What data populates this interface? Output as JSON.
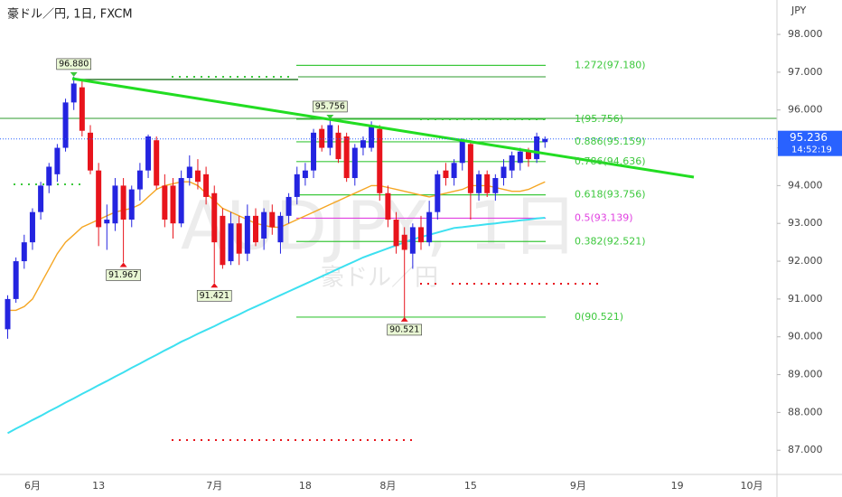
{
  "chart_data": {
    "type": "candlestick",
    "title": "豪ドル／円, 1日, FXCM",
    "watermark": "AUDJPY, 1日",
    "watermark_sub": "豪ドル／円",
    "axis_unit": "JPY",
    "categories": [
      null,
      null,
      null,
      "6月",
      null,
      null,
      null,
      null,
      null,
      null,
      null,
      "13",
      null,
      null,
      null,
      null,
      null,
      null,
      null,
      null,
      null,
      null,
      null,
      null,
      null,
      "7月",
      null,
      null,
      null,
      null,
      null,
      null,
      null,
      null,
      null,
      null,
      "18",
      null,
      null,
      null,
      null,
      null,
      null,
      null,
      null,
      null,
      "8月",
      null,
      null,
      null,
      null,
      null,
      null,
      null,
      null,
      null,
      "15",
      null,
      null,
      null,
      null,
      null,
      null,
      null,
      null,
      null,
      null,
      null,
      null,
      "9月",
      null,
      null,
      null,
      null,
      null,
      null,
      null,
      null,
      null,
      null,
      null,
      "19",
      null,
      null,
      null,
      null,
      null,
      null,
      null,
      null,
      "10月",
      null
    ],
    "open": [
      90.2,
      91.0,
      92.0,
      92.5,
      93.3,
      94.0,
      94.3,
      95.0,
      96.2,
      96.6,
      95.4,
      94.4,
      93.0,
      93.0,
      94.0,
      93.1,
      93.9,
      94.4,
      95.2,
      94.0,
      94.0,
      93.0,
      94.2,
      94.4,
      94.3,
      93.8,
      93.2,
      92.0,
      93.0,
      92.2,
      93.2,
      92.6,
      93.3,
      92.5,
      93.2,
      93.7,
      94.2,
      94.4,
      95.5,
      95.0,
      95.4,
      95.3,
      94.2,
      95.0,
      95.0,
      95.5,
      93.8,
      93.1,
      92.7,
      92.2,
      92.9,
      92.5,
      93.3,
      94.4,
      94.2,
      94.6,
      95.1,
      93.8,
      94.3,
      93.8,
      94.2,
      94.4,
      94.6,
      94.9,
      94.7,
      95.15,
      null,
      null,
      null,
      null,
      null,
      null,
      null,
      null,
      null,
      null,
      null,
      null,
      null,
      null,
      null,
      null,
      null,
      null,
      null,
      null,
      null,
      null,
      null,
      null,
      null,
      null
    ],
    "high": [
      91.1,
      92.1,
      92.7,
      93.4,
      94.1,
      94.6,
      95.1,
      96.3,
      96.88,
      96.8,
      95.6,
      94.6,
      93.5,
      94.2,
      94.2,
      94.0,
      94.6,
      95.35,
      95.3,
      94.3,
      94.2,
      94.4,
      94.8,
      94.7,
      94.5,
      94.0,
      93.4,
      93.3,
      93.2,
      93.5,
      93.4,
      93.4,
      93.5,
      93.3,
      93.8,
      94.5,
      94.6,
      95.5,
      95.6,
      95.756,
      95.6,
      95.4,
      95.1,
      95.3,
      95.7,
      95.6,
      94.0,
      93.3,
      92.9,
      93.0,
      93.2,
      93.6,
      94.4,
      94.6,
      94.7,
      95.25,
      95.2,
      94.4,
      94.4,
      94.3,
      94.7,
      94.9,
      95.0,
      95.0,
      95.4,
      95.3,
      null,
      null,
      null,
      null,
      null,
      null,
      null,
      null,
      null,
      null,
      null,
      null,
      null,
      null,
      null,
      null,
      null,
      null,
      null,
      null,
      null,
      null,
      null,
      null,
      null,
      null
    ],
    "low": [
      89.95,
      90.9,
      91.8,
      92.3,
      93.1,
      93.8,
      94.1,
      94.9,
      96.0,
      95.3,
      94.3,
      92.4,
      92.3,
      92.8,
      91.967,
      92.9,
      93.6,
      94.2,
      93.9,
      92.9,
      92.6,
      92.9,
      94.0,
      93.9,
      93.5,
      91.421,
      91.8,
      91.9,
      91.9,
      92.0,
      92.4,
      92.3,
      92.7,
      92.2,
      93.0,
      93.5,
      94.0,
      94.2,
      94.9,
      94.8,
      94.6,
      94.1,
      94.0,
      94.8,
      94.9,
      93.6,
      92.9,
      92.2,
      90.521,
      91.8,
      92.3,
      92.4,
      93.1,
      94.0,
      94.0,
      94.4,
      93.1,
      93.6,
      93.7,
      93.6,
      94.0,
      94.2,
      94.4,
      94.5,
      94.6,
      95.0,
      null,
      null,
      null,
      null,
      null,
      null,
      null,
      null,
      null,
      null,
      null,
      null,
      null,
      null,
      null,
      null,
      null,
      null,
      null,
      null,
      null,
      null,
      null,
      null,
      null,
      null
    ],
    "close": [
      91.0,
      92.0,
      92.5,
      93.3,
      94.0,
      94.5,
      95.0,
      96.2,
      96.7,
      95.45,
      94.4,
      92.9,
      93.1,
      94.0,
      93.1,
      93.9,
      94.4,
      95.3,
      94.0,
      93.1,
      93.0,
      94.2,
      94.5,
      94.1,
      93.7,
      92.5,
      91.9,
      93.0,
      92.2,
      93.2,
      92.5,
      93.3,
      92.9,
      93.2,
      93.7,
      94.3,
      94.4,
      95.4,
      95.0,
      95.6,
      94.7,
      94.2,
      95.0,
      95.2,
      95.6,
      93.8,
      93.1,
      92.4,
      92.3,
      92.9,
      92.5,
      93.3,
      94.3,
      94.2,
      94.6,
      95.2,
      93.8,
      94.3,
      93.8,
      94.2,
      94.5,
      94.8,
      94.9,
      94.7,
      95.3,
      95.236,
      null,
      null,
      null,
      null,
      null,
      null,
      null,
      null,
      null,
      null,
      null,
      null,
      null,
      null,
      null,
      null,
      null,
      null,
      null,
      null,
      null,
      null,
      null,
      null,
      null,
      null
    ],
    "up_color": "#2424e0",
    "down_color": "#e8141c",
    "series": [
      {
        "color": "#f5a623",
        "values": [
          90.7,
          90.7,
          90.8,
          91.0,
          91.4,
          91.8,
          92.2,
          92.5,
          92.7,
          92.9,
          93.0,
          93.1,
          93.2,
          93.3,
          93.35,
          93.4,
          93.5,
          93.7,
          93.9,
          94.0,
          94.05,
          94.1,
          94.1,
          94.0,
          93.8,
          93.6,
          93.4,
          93.3,
          93.2,
          93.1,
          93.0,
          92.95,
          92.9,
          92.9,
          93.0,
          93.1,
          93.2,
          93.3,
          93.4,
          93.5,
          93.6,
          93.7,
          93.8,
          93.9,
          94.0,
          94.0,
          93.95,
          93.9,
          93.85,
          93.8,
          93.75,
          93.7,
          93.75,
          93.8,
          93.85,
          93.9,
          94.0,
          94.0,
          94.0,
          93.95,
          93.9,
          93.85,
          93.85,
          93.9,
          94.0,
          94.1,
          null,
          null,
          null,
          null,
          null,
          null,
          null,
          null,
          null,
          null,
          null,
          null,
          null,
          null,
          null,
          null,
          null,
          null,
          null,
          null,
          null,
          null,
          null,
          null,
          null,
          null
        ]
      },
      {
        "color": "#3de0f0",
        "values": [
          87.45,
          87.57,
          87.68,
          87.8,
          87.91,
          88.03,
          88.14,
          88.26,
          88.37,
          88.49,
          88.6,
          88.72,
          88.83,
          88.95,
          89.06,
          89.18,
          89.29,
          89.41,
          89.52,
          89.64,
          89.75,
          89.87,
          89.97,
          90.08,
          90.18,
          90.28,
          90.39,
          90.49,
          90.59,
          90.7,
          90.8,
          90.9,
          91.0,
          91.1,
          91.2,
          91.3,
          91.4,
          91.5,
          91.6,
          91.7,
          91.8,
          91.9,
          92.0,
          92.1,
          92.18,
          92.26,
          92.34,
          92.42,
          92.5,
          92.58,
          92.64,
          92.7,
          92.76,
          92.82,
          92.88,
          92.9,
          92.93,
          92.95,
          92.98,
          93.0,
          93.03,
          93.05,
          93.08,
          93.1,
          93.13,
          93.15,
          null,
          null,
          null,
          null,
          null,
          null,
          null,
          null,
          null,
          null,
          null,
          null,
          null,
          null,
          null,
          null,
          null,
          null,
          null,
          null,
          null,
          null,
          null,
          null,
          null,
          null
        ]
      }
    ],
    "fib_levels": [
      {
        "label": "1.272(97.180)",
        "value": 97.18,
        "color": "#3cc83c"
      },
      {
        "label": "1(95.756)",
        "value": 95.756,
        "color": "#3cc83c"
      },
      {
        "label": "0.886(95.159)",
        "value": 95.159,
        "color": "#3cc83c"
      },
      {
        "label": "0.786(94.636)",
        "value": 94.636,
        "color": "#3cc83c"
      },
      {
        "label": "0.618(93.756)",
        "value": 93.756,
        "color": "#3cc83c"
      },
      {
        "label": "0.5(93.139)",
        "value": 93.139,
        "color": "#e040e0"
      },
      {
        "label": "0.382(92.521)",
        "value": 92.521,
        "color": "#3cc83c"
      },
      {
        "label": "0(90.521)",
        "value": 90.521,
        "color": "#3cc83c"
      }
    ],
    "annotations": [
      {
        "label": "96.880",
        "value": 96.88
      },
      {
        "label": "91.967",
        "value": 91.967
      },
      {
        "label": "91.421",
        "value": 91.421
      },
      {
        "label": "95.756",
        "value": 95.756
      },
      {
        "label": "90.521",
        "value": 90.521
      }
    ],
    "last_price": {
      "value": 95.236,
      "label": "95.236"
    },
    "countdown": "14:52:19",
    "price_line_color": "#2962ff",
    "ylim": [
      86.36,
      98.91
    ],
    "yticks": [
      {
        "value": 87,
        "label": "87.000"
      },
      {
        "value": 88,
        "label": "88.000"
      },
      {
        "value": 89,
        "label": "89.000"
      },
      {
        "value": 90,
        "label": "90.000"
      },
      {
        "value": 91,
        "label": "91.000"
      },
      {
        "value": 92,
        "label": "92.000"
      },
      {
        "value": 93,
        "label": "93.000"
      },
      {
        "value": 94,
        "label": "94.000"
      },
      {
        "value": 95,
        "label": "95.000"
      },
      {
        "value": 96,
        "label": "96.000"
      },
      {
        "value": 97,
        "label": "97.000"
      },
      {
        "value": 98,
        "label": "98.000"
      }
    ],
    "grid": false
  }
}
